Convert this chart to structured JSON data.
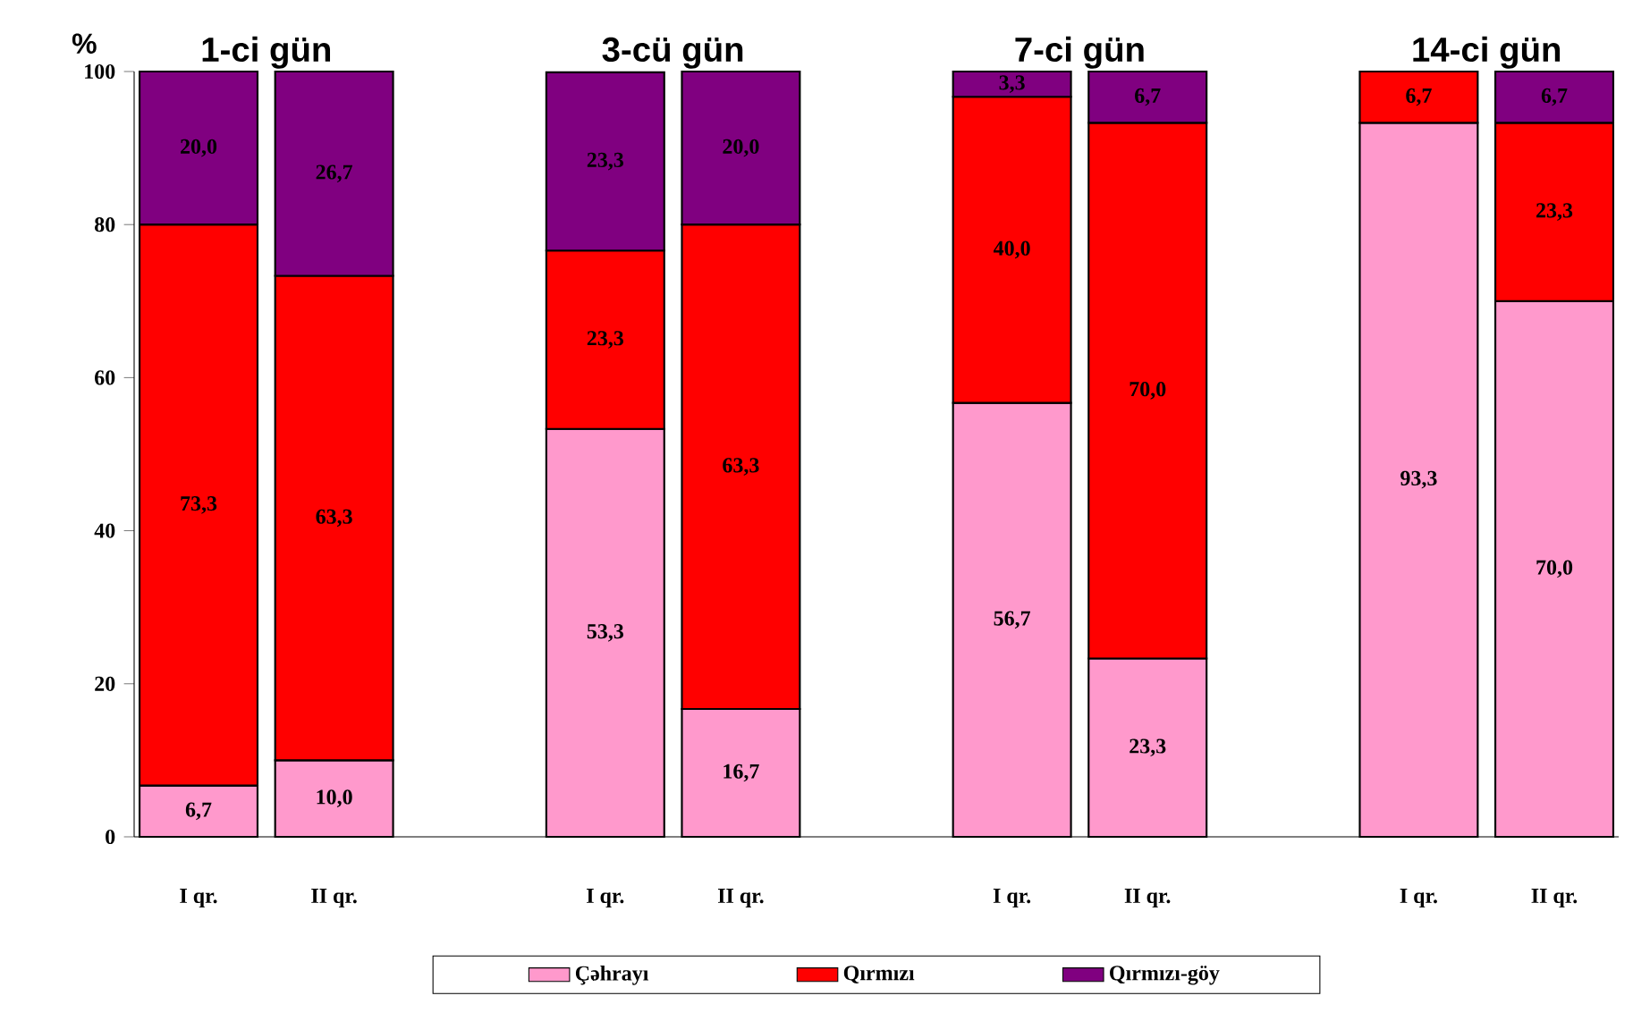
{
  "chart_data": {
    "type": "bar",
    "stacked": true,
    "ylabel": "%",
    "annotations": [
      "1-ci gün",
      "3-cü gün",
      "7-ci gün",
      "14-ci gün"
    ],
    "categories": [
      "I qr.",
      "II qr.",
      null,
      "I qr.",
      "II qr.",
      null,
      "I qr.",
      "II qr.",
      null,
      "I qr.",
      "II qr."
    ],
    "series": [
      {
        "name": "Çəhrayı",
        "color": "#ff99cc",
        "values": [
          6.7,
          10.0,
          null,
          53.3,
          16.7,
          null,
          56.7,
          23.3,
          null,
          93.3,
          70.0
        ],
        "value_labels": [
          "6,7",
          "10,0",
          null,
          "53,3",
          "16,7",
          null,
          "56,7",
          "23,3",
          null,
          "93,3",
          "70,0"
        ]
      },
      {
        "name": "Qırmızı",
        "color": "#ff0000",
        "values": [
          73.3,
          63.3,
          null,
          23.3,
          63.3,
          null,
          40.0,
          70.0,
          null,
          6.7,
          23.3
        ],
        "value_labels": [
          "73,3",
          "63,3",
          null,
          "23,3",
          "63,3",
          null,
          "40,0",
          "70,0",
          null,
          "6,7",
          "23,3"
        ]
      },
      {
        "name": "Qırmızı-göy",
        "color": "#800080",
        "values": [
          20.0,
          26.7,
          null,
          23.3,
          20.0,
          null,
          3.3,
          6.7,
          null,
          null,
          6.7
        ],
        "value_labels": [
          "20,0",
          "26,7",
          null,
          "23,3",
          "20,0",
          null,
          "3,3",
          "6,7",
          null,
          null,
          "6,7"
        ]
      }
    ],
    "ylim": [
      0,
      100
    ],
    "yticks": [
      0,
      20,
      40,
      60,
      80,
      100
    ],
    "legend": "bottom",
    "grid": false
  }
}
